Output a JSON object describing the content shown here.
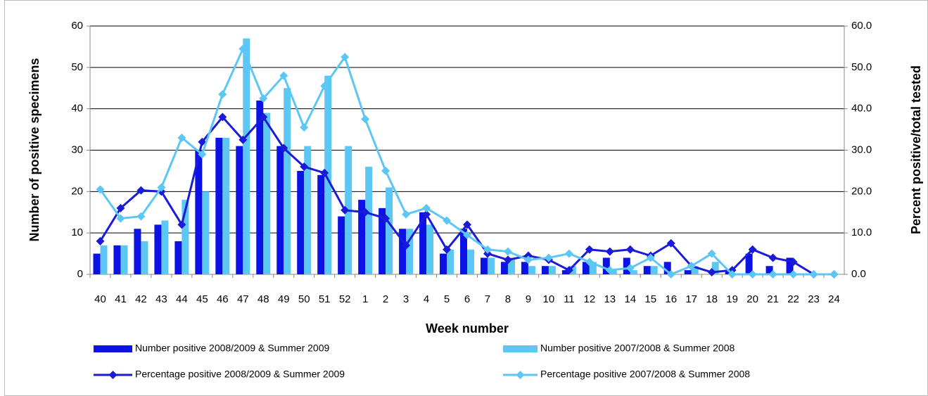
{
  "chart_data": {
    "type": "combo",
    "x_label": "Week number",
    "y_label": "Number of positive specimens",
    "y2_label": "Percent positive/total tested",
    "categories": [
      "40",
      "41",
      "42",
      "43",
      "44",
      "45",
      "46",
      "47",
      "48",
      "49",
      "50",
      "51",
      "52",
      "1",
      "2",
      "3",
      "4",
      "5",
      "6",
      "7",
      "8",
      "9",
      "10",
      "11",
      "12",
      "13",
      "14",
      "15",
      "16",
      "17",
      "18",
      "19",
      "20",
      "21",
      "22",
      "23",
      "24"
    ],
    "ylim": [
      0,
      60
    ],
    "yticks": [
      0,
      10,
      20,
      30,
      40,
      50,
      60
    ],
    "y2lim": [
      0,
      60
    ],
    "y2ticks": [
      {
        "value": 0,
        "label": "0.0"
      },
      {
        "value": 10,
        "label": "10.0"
      },
      {
        "value": 20,
        "label": "20.0"
      },
      {
        "value": 30,
        "label": "30.0"
      },
      {
        "value": 40,
        "label": "40.0"
      },
      {
        "value": 50,
        "label": "50.0"
      },
      {
        "value": 60,
        "label": "60.0"
      }
    ],
    "grid": true,
    "legend_position": "bottom",
    "series": [
      {
        "name": "Number positive 2008/2009 & Summer 2009",
        "type": "bar",
        "color": "#0c12e4",
        "values": [
          5,
          7,
          11,
          12,
          8,
          30,
          33,
          31,
          42,
          31,
          25,
          24,
          14,
          18,
          16,
          11,
          15,
          5,
          11,
          4,
          3,
          3,
          2,
          1,
          3,
          4,
          4,
          2,
          3,
          1,
          0,
          1,
          5,
          2,
          4,
          0,
          0
        ]
      },
      {
        "name": "Number positive 2007/2008 & Summer 2008",
        "type": "bar",
        "color": "#5cc6f4",
        "values": [
          7,
          7,
          8,
          13,
          18,
          20,
          33,
          57,
          39,
          45,
          31,
          48,
          31,
          26,
          21,
          11,
          12,
          6,
          6,
          4,
          4,
          2,
          2,
          2,
          3,
          1,
          1,
          2,
          0,
          2,
          3,
          0,
          0,
          0,
          0,
          0,
          0
        ]
      },
      {
        "name": "Percentage positive 2008/2009 & Summer 2009",
        "type": "line",
        "axis": "y2",
        "color": "#1a1ad8",
        "values": [
          8,
          16,
          20.3,
          20,
          12,
          32,
          38,
          32.5,
          38,
          30.5,
          26,
          24.5,
          15.5,
          15,
          13.5,
          7,
          14.5,
          6,
          12,
          5,
          3.5,
          4.5,
          3.5,
          1,
          6,
          5.5,
          6,
          4.5,
          7.5,
          2,
          0.5,
          1,
          6,
          4,
          3,
          0,
          0
        ]
      },
      {
        "name": "Percentage positive 2007/2008 & Summer 2008",
        "type": "line",
        "axis": "y2",
        "color": "#5cc6f4",
        "values": [
          20.5,
          13.5,
          14,
          21,
          33,
          29,
          43.5,
          54.5,
          42.5,
          48,
          35.5,
          45.5,
          52.5,
          37.5,
          25,
          14.5,
          16,
          13,
          9.5,
          6,
          5.5,
          3.5,
          4,
          5,
          3,
          1,
          1.5,
          4,
          0,
          2,
          5,
          0,
          0,
          0,
          0,
          0,
          0
        ]
      }
    ]
  }
}
